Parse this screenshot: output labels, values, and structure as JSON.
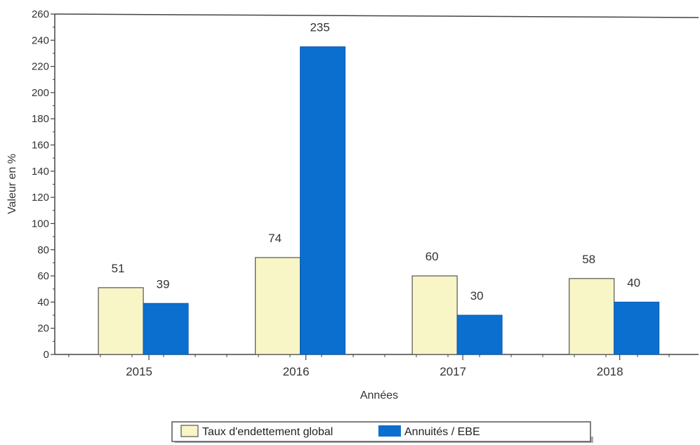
{
  "chart_data": {
    "type": "bar",
    "categories": [
      "2015",
      "2016",
      "2017",
      "2018"
    ],
    "series": [
      {
        "name": "Taux d'endettement global",
        "values": [
          51,
          74,
          60,
          58
        ],
        "color": "#f8f5c6"
      },
      {
        "name": "Annuités / EBE",
        "values": [
          39,
          235,
          30,
          40
        ],
        "color": "#0b6fd0"
      }
    ],
    "xlabel": "Années",
    "ylabel": "Valeur en %",
    "ylim": [
      0,
      260
    ],
    "yticks": [
      0,
      20,
      40,
      60,
      80,
      100,
      120,
      140,
      160,
      180,
      200,
      220,
      240,
      260
    ],
    "grid": false,
    "legend_position": "bottom"
  }
}
